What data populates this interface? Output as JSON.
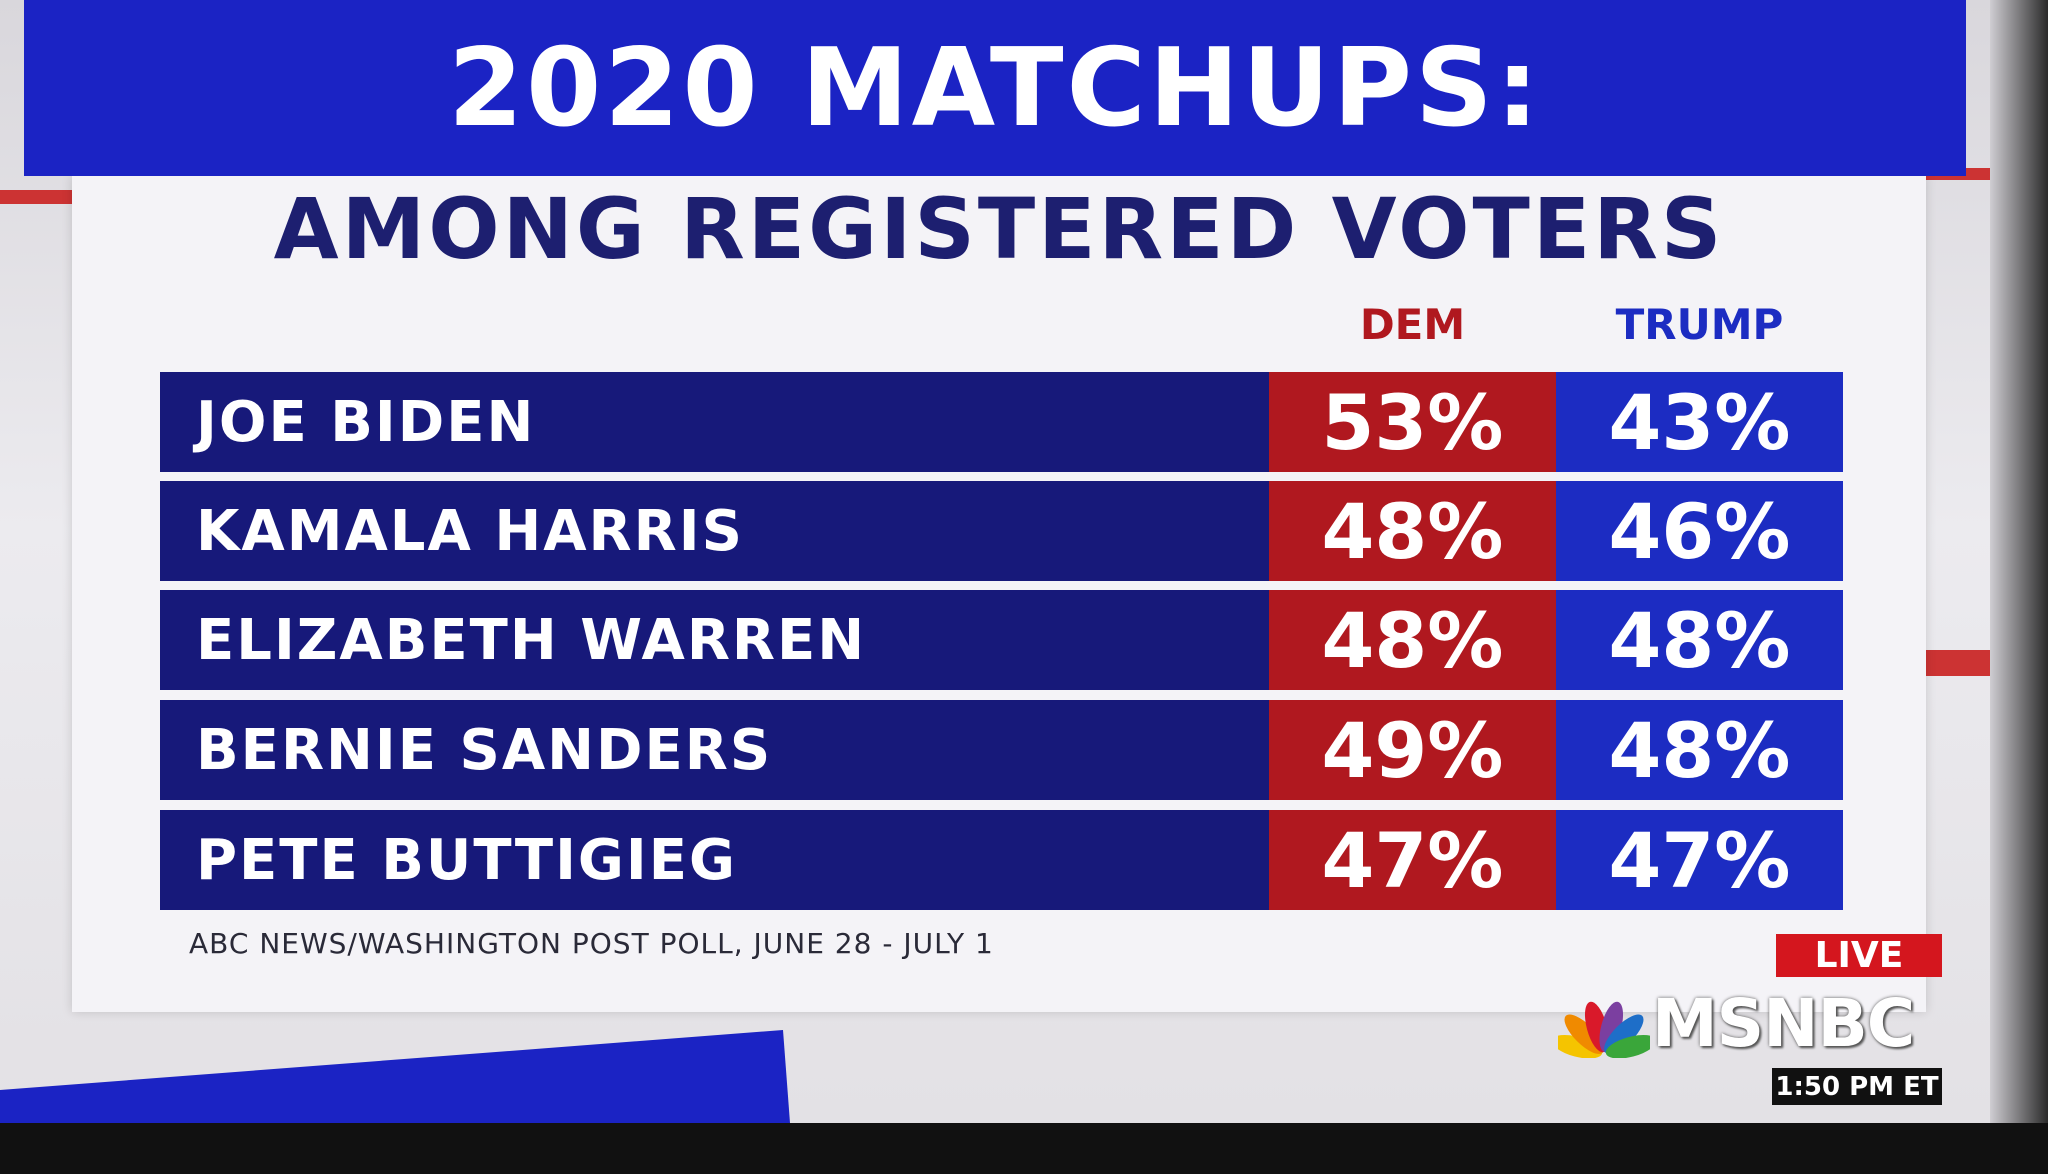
{
  "title": "2020 MATCHUPS:",
  "subtitle": "AMONG REGISTERED VOTERS",
  "table": {
    "columns": [
      "DEM",
      "TRUMP"
    ],
    "rows": [
      {
        "name": "JOE BIDEN",
        "dem": "53%",
        "trump": "43%"
      },
      {
        "name": "KAMALA HARRIS",
        "dem": "48%",
        "trump": "46%"
      },
      {
        "name": "ELIZABETH WARREN",
        "dem": "48%",
        "trump": "48%"
      },
      {
        "name": "BERNIE SANDERS",
        "dem": "49%",
        "trump": "48%"
      },
      {
        "name": "PETE BUTTIGIEG",
        "dem": "47%",
        "trump": "47%"
      }
    ]
  },
  "source": "ABC NEWS/WASHINGTON POST POLL, JUNE 28 - JULY 1",
  "bug": {
    "live": "LIVE",
    "network": "MSNBC",
    "time": "1:50 PM ET"
  }
}
